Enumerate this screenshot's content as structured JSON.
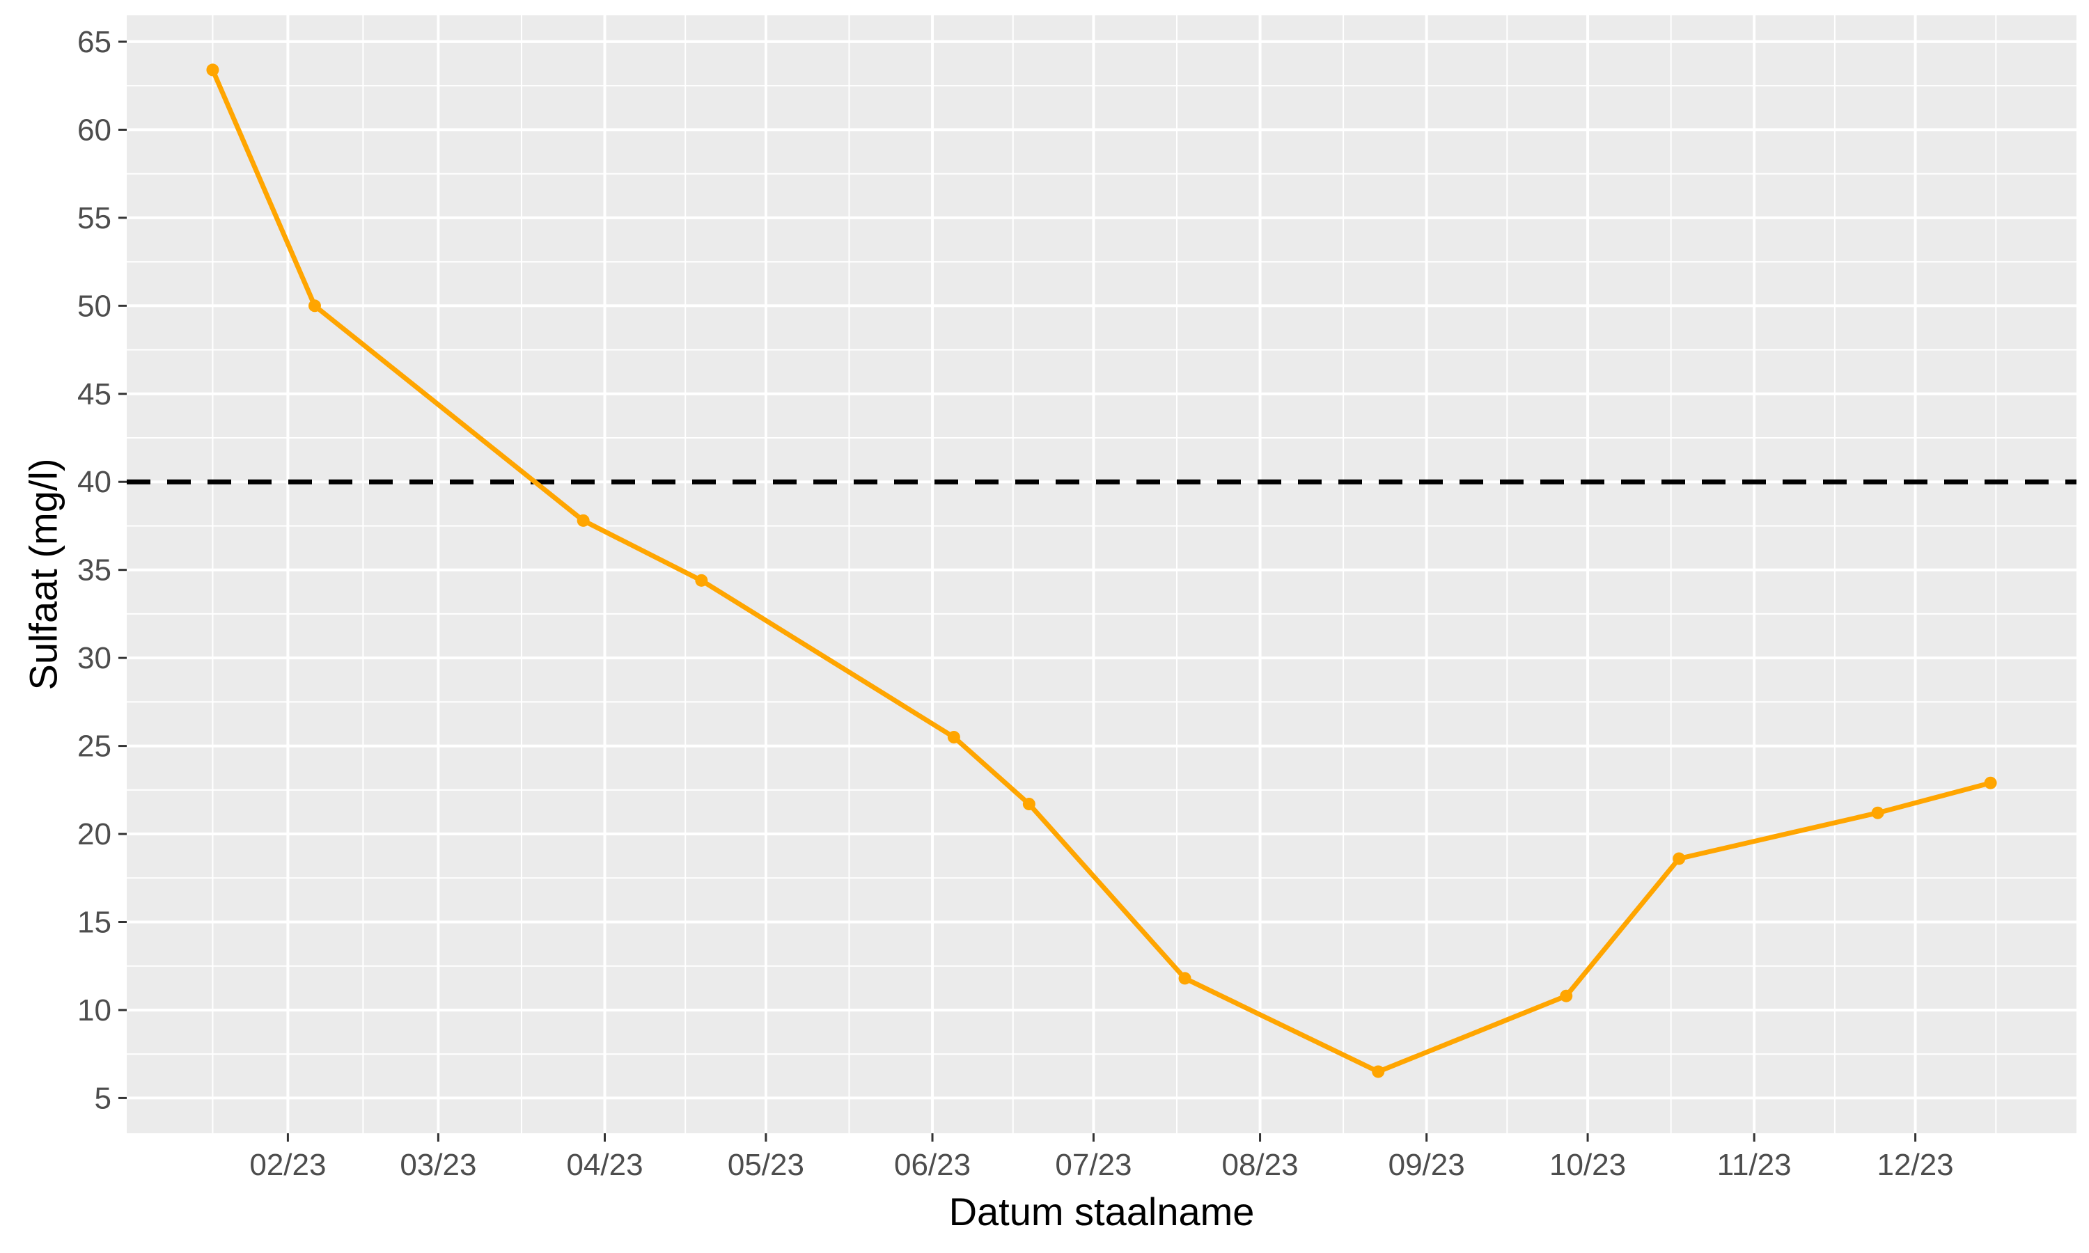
{
  "chart_data": {
    "type": "line",
    "xlabel": "Datum staalname",
    "ylabel": "Sulfaat (mg/l)",
    "ylim": [
      3.0,
      66.5
    ],
    "xlim": [
      "2023-01-02",
      "2023-12-31"
    ],
    "y_ticks": [
      5,
      10,
      15,
      20,
      25,
      30,
      35,
      40,
      45,
      50,
      55,
      60,
      65
    ],
    "x_ticks": [
      {
        "date": "2023-02-01",
        "label": "02/23"
      },
      {
        "date": "2023-03-01",
        "label": "03/23"
      },
      {
        "date": "2023-04-01",
        "label": "04/23"
      },
      {
        "date": "2023-05-01",
        "label": "05/23"
      },
      {
        "date": "2023-06-01",
        "label": "06/23"
      },
      {
        "date": "2023-07-01",
        "label": "07/23"
      },
      {
        "date": "2023-08-01",
        "label": "08/23"
      },
      {
        "date": "2023-09-01",
        "label": "09/23"
      },
      {
        "date": "2023-10-01",
        "label": "10/23"
      },
      {
        "date": "2023-11-01",
        "label": "11/23"
      },
      {
        "date": "2023-12-01",
        "label": "12/23"
      }
    ],
    "grid": true,
    "panel_background": "#ebebeb",
    "reference_line": {
      "y": 40,
      "style": "dashed",
      "color": "#000000"
    },
    "series": [
      {
        "color": "#ffa500",
        "x": [
          "2023-01-18",
          "2023-02-06",
          "2023-03-28",
          "2023-04-19",
          "2023-06-05",
          "2023-06-19",
          "2023-07-18",
          "2023-08-23",
          "2023-09-27",
          "2023-10-18",
          "2023-11-24",
          "2023-12-15"
        ],
        "y": [
          63.4,
          50.0,
          37.8,
          34.4,
          25.5,
          21.7,
          11.8,
          6.5,
          10.8,
          18.6,
          21.2,
          22.9
        ]
      }
    ]
  }
}
